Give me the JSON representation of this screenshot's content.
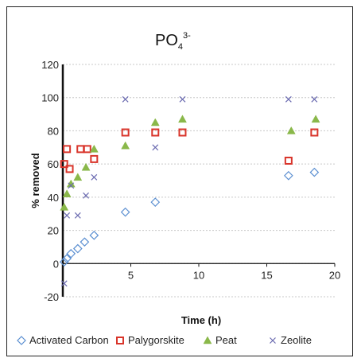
{
  "chart_data": {
    "type": "scatter",
    "title": "PO",
    "title_sub": "4",
    "title_sup": "3-",
    "xlabel": "Time (h)",
    "ylabel": "% removed",
    "xlim": [
      0,
      20
    ],
    "ylim": [
      -20,
      120
    ],
    "xticks": [
      0,
      5,
      10,
      15,
      20
    ],
    "yticks": [
      -20,
      0,
      20,
      40,
      60,
      80,
      100,
      120
    ],
    "grid": true,
    "legend_position": "bottom",
    "series": [
      {
        "name": "Activated Carbon",
        "marker": "diamond",
        "color": "#5b8fd1",
        "points": [
          [
            0.1,
            1
          ],
          [
            0.3,
            3
          ],
          [
            0.6,
            6
          ],
          [
            1.1,
            9
          ],
          [
            1.6,
            13
          ],
          [
            2.3,
            17
          ],
          [
            4.6,
            31
          ],
          [
            6.8,
            37
          ],
          [
            16.6,
            53
          ],
          [
            18.5,
            55
          ]
        ]
      },
      {
        "name": "Palygorskite",
        "marker": "square",
        "color": "#d9352b",
        "points": [
          [
            0.1,
            60
          ],
          [
            0.3,
            69
          ],
          [
            0.5,
            57
          ],
          [
            1.3,
            69
          ],
          [
            1.8,
            69
          ],
          [
            2.3,
            63
          ],
          [
            4.6,
            79
          ],
          [
            6.8,
            79
          ],
          [
            8.8,
            79
          ],
          [
            16.6,
            62
          ],
          [
            18.5,
            79
          ]
        ]
      },
      {
        "name": "Peat",
        "marker": "triangle",
        "color": "#8ab84a",
        "points": [
          [
            0.1,
            34
          ],
          [
            0.3,
            42
          ],
          [
            0.6,
            48
          ],
          [
            1.1,
            52
          ],
          [
            1.7,
            58
          ],
          [
            2.3,
            69
          ],
          [
            4.6,
            71
          ],
          [
            6.8,
            85
          ],
          [
            8.8,
            87
          ],
          [
            16.8,
            80
          ],
          [
            18.6,
            87
          ]
        ]
      },
      {
        "name": "Zeolite",
        "marker": "x",
        "color": "#6a6ab0",
        "points": [
          [
            0.1,
            -12
          ],
          [
            0.3,
            29
          ],
          [
            0.6,
            47
          ],
          [
            1.1,
            29
          ],
          [
            1.7,
            41
          ],
          [
            2.3,
            52
          ],
          [
            4.6,
            99
          ],
          [
            6.8,
            70
          ],
          [
            8.8,
            99
          ],
          [
            16.6,
            99
          ],
          [
            18.5,
            99
          ]
        ]
      }
    ]
  }
}
